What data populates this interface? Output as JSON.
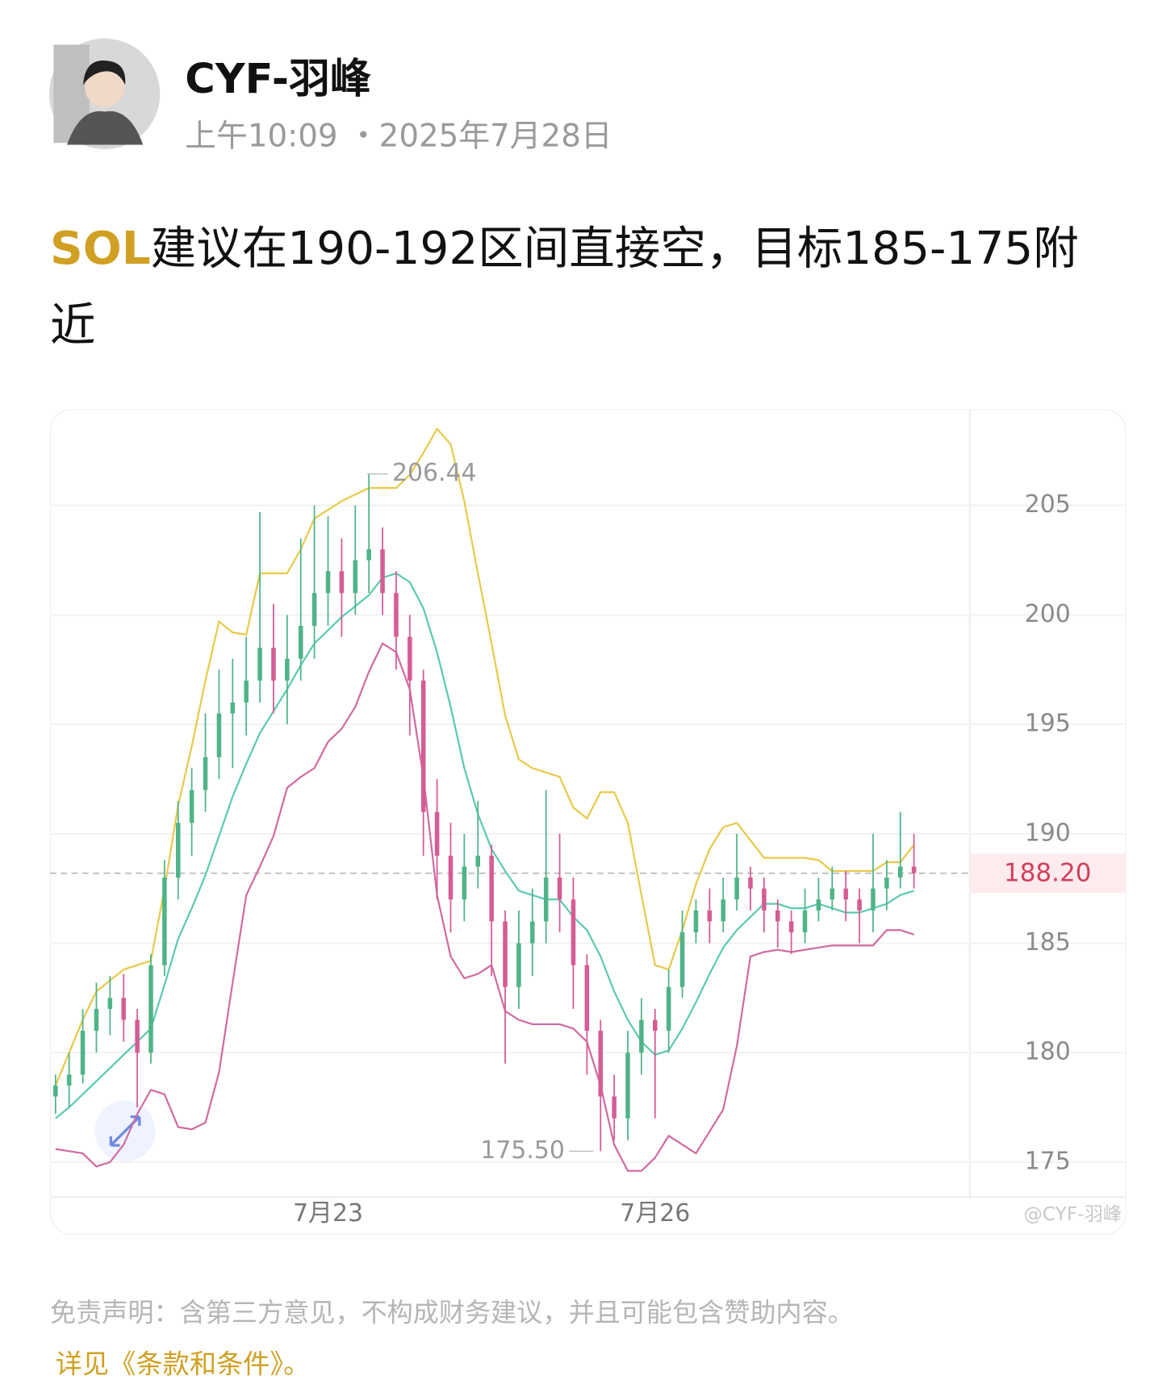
{
  "header": {
    "name": "CYF-羽峰",
    "time": "上午10:09",
    "date": "・2025年7月28日"
  },
  "post": {
    "highlight": "SOL",
    "text": "建议在190-192区间直接空，目标185-175附近"
  },
  "chart": {
    "type": "candlestick",
    "candles": [
      [
        178,
        179,
        177.2,
        178.5
      ],
      [
        178.5,
        180,
        177.5,
        179
      ],
      [
        179,
        182,
        178.6,
        181
      ],
      [
        181,
        183.2,
        180,
        182
      ],
      [
        182,
        183.5,
        180.8,
        182.5
      ],
      [
        182.5,
        183.6,
        180.5,
        181.5
      ],
      [
        181.5,
        182,
        177.5,
        180
      ],
      [
        180,
        184.5,
        179.5,
        184
      ],
      [
        184,
        188.8,
        183.5,
        188
      ],
      [
        188,
        191.5,
        187,
        190.5
      ],
      [
        190.5,
        193,
        189,
        192
      ],
      [
        192,
        195.5,
        191,
        193.5
      ],
      [
        193.5,
        197.5,
        192.5,
        195.5
      ],
      [
        195.5,
        198,
        193,
        196
      ],
      [
        196,
        199,
        194.5,
        197
      ],
      [
        197,
        204.7,
        196,
        198.5
      ],
      [
        198.5,
        200.5,
        195.5,
        197
      ],
      [
        197,
        200,
        195,
        198
      ],
      [
        198,
        203.5,
        197,
        199.5
      ],
      [
        199.5,
        205,
        198,
        201
      ],
      [
        201,
        204.5,
        199.5,
        202
      ],
      [
        202,
        203.5,
        199,
        201
      ],
      [
        201,
        205,
        200,
        202.5
      ],
      [
        202.5,
        206.44,
        201,
        203
      ],
      [
        203,
        204,
        200,
        201
      ],
      [
        201,
        202,
        197.5,
        199
      ],
      [
        199,
        200,
        194.5,
        197
      ],
      [
        197,
        197.5,
        189,
        191
      ],
      [
        191,
        192.5,
        187,
        189
      ],
      [
        189,
        190.5,
        185.5,
        187
      ],
      [
        187,
        190,
        186,
        188.5
      ],
      [
        188.5,
        191.5,
        187.5,
        189
      ],
      [
        189,
        189.5,
        183.5,
        186
      ],
      [
        186,
        186.5,
        179.5,
        183
      ],
      [
        183,
        186.5,
        182,
        185
      ],
      [
        185,
        187.5,
        183.5,
        186
      ],
      [
        186,
        192,
        185,
        188
      ],
      [
        188,
        190,
        185.5,
        187
      ],
      [
        187,
        188,
        182,
        184
      ],
      [
        184,
        184.5,
        179,
        181
      ],
      [
        181,
        181.5,
        175.5,
        178
      ],
      [
        178,
        179,
        176,
        177
      ],
      [
        177,
        181,
        176,
        180
      ],
      [
        180,
        182.5,
        179,
        181.5
      ],
      [
        181.5,
        182,
        177,
        181
      ],
      [
        181,
        183.8,
        180,
        183
      ],
      [
        183,
        186.5,
        182.5,
        185.5
      ],
      [
        185.5,
        187,
        185,
        186.5
      ],
      [
        186.5,
        187.5,
        185,
        186
      ],
      [
        186,
        188,
        185.5,
        187
      ],
      [
        187,
        190,
        186.5,
        188
      ],
      [
        188,
        188.5,
        186.5,
        187.5
      ],
      [
        187.5,
        188,
        185.5,
        186.5
      ],
      [
        186.5,
        187,
        184.8,
        186
      ],
      [
        186,
        186.5,
        184.5,
        185.5
      ],
      [
        185.5,
        187.5,
        185,
        186.5
      ],
      [
        186.5,
        188,
        186,
        187
      ],
      [
        187,
        188.5,
        186.5,
        187.5
      ],
      [
        187.5,
        188.3,
        186,
        187
      ],
      [
        187,
        187.5,
        185,
        186.5
      ],
      [
        186.5,
        190,
        185.5,
        187.5
      ],
      [
        187.5,
        188.8,
        186.5,
        188
      ],
      [
        188,
        191,
        187.5,
        188.5
      ],
      [
        188.5,
        190,
        187.5,
        188.2
      ]
    ],
    "bands": {
      "upper": {
        "color": "#e8c94a",
        "values": [
          178.5,
          180,
          181.5,
          182.8,
          183.3,
          183.8,
          184,
          184.2,
          187.5,
          191.3,
          194,
          197,
          199.7,
          199.2,
          199.1,
          201.9,
          201.9,
          201.9,
          203,
          204.4,
          204.8,
          205.2,
          205.5,
          205.8,
          205.8,
          205.8,
          206.4,
          207.4,
          208.5,
          207.8,
          205.2,
          201.9,
          198.7,
          195.4,
          193.4,
          193,
          192.8,
          192.6,
          191.2,
          190.7,
          191.9,
          191.9,
          190.5,
          187.2,
          184,
          183.8,
          185.6,
          187.7,
          189.3,
          190.3,
          190.5,
          189.7,
          188.9,
          188.9,
          188.9,
          188.9,
          188.8,
          188.3,
          188.3,
          188.3,
          188.3,
          188.7,
          188.7,
          189.5
        ]
      },
      "middle": {
        "color": "#5cc9b2",
        "values": [
          177,
          177.5,
          178.1,
          178.7,
          179.3,
          179.9,
          180.5,
          181.1,
          183.1,
          185.2,
          186.6,
          188.1,
          189.9,
          191.7,
          193.2,
          194.6,
          195.6,
          196.6,
          197.7,
          198.7,
          199.3,
          199.9,
          200.4,
          200.9,
          201.7,
          201.9,
          201.5,
          200.3,
          198.3,
          195.8,
          193,
          190.9,
          189.3,
          188.3,
          187.4,
          187.2,
          187,
          187,
          186.2,
          185.6,
          184.4,
          182.8,
          181.5,
          180.5,
          179.9,
          180.1,
          181.1,
          182.3,
          183.6,
          184.8,
          185.6,
          186.2,
          186.8,
          186.8,
          186.6,
          186.6,
          186.8,
          186.6,
          186.4,
          186.4,
          186.6,
          186.8,
          187.2,
          187.4
        ]
      },
      "lower": {
        "color": "#d06ba2",
        "values": [
          175.6,
          175.5,
          175.4,
          174.8,
          175,
          175.8,
          177.2,
          178.3,
          178.1,
          176.6,
          176.5,
          176.8,
          179.1,
          183.2,
          187.2,
          188.5,
          189.9,
          192.1,
          192.6,
          193,
          194.2,
          194.8,
          195.8,
          197.4,
          198.7,
          198.3,
          196.6,
          192.6,
          187.2,
          184.4,
          183.4,
          183.6,
          184,
          181.9,
          181.5,
          181.3,
          181.3,
          181.3,
          181.1,
          180.5,
          178.5,
          175.8,
          174.6,
          174.6,
          175.2,
          176.2,
          175.8,
          175.4,
          176.4,
          177.4,
          180.3,
          184.4,
          184.6,
          184.7,
          184.6,
          184.7,
          184.8,
          184.9,
          184.9,
          184.9,
          184.9,
          185.6,
          185.6,
          185.4
        ]
      }
    },
    "up_color": "#4fb488",
    "down_color": "#d65c94",
    "ylim": [
      173.4,
      209.4
    ],
    "yticks": [
      175,
      180,
      185,
      190,
      195,
      200,
      205
    ],
    "xlim": [
      -0.4,
      67.1
    ],
    "xticks": [
      {
        "value": 20,
        "label": "7月23"
      },
      {
        "value": 44,
        "label": "7月26"
      }
    ],
    "grid": true,
    "last_price": {
      "value": 188.2,
      "label": "188.20"
    },
    "max": 206.44,
    "min": {
      "value": 175.5,
      "label": "175.50"
    },
    "watermark": "@CYF-羽峰"
  },
  "disclaimer": {
    "text": "免责声明：含第三方意见，不构成财务建议，并且可能包含赞助内容。",
    "link": "详见《条款和条件》。"
  }
}
